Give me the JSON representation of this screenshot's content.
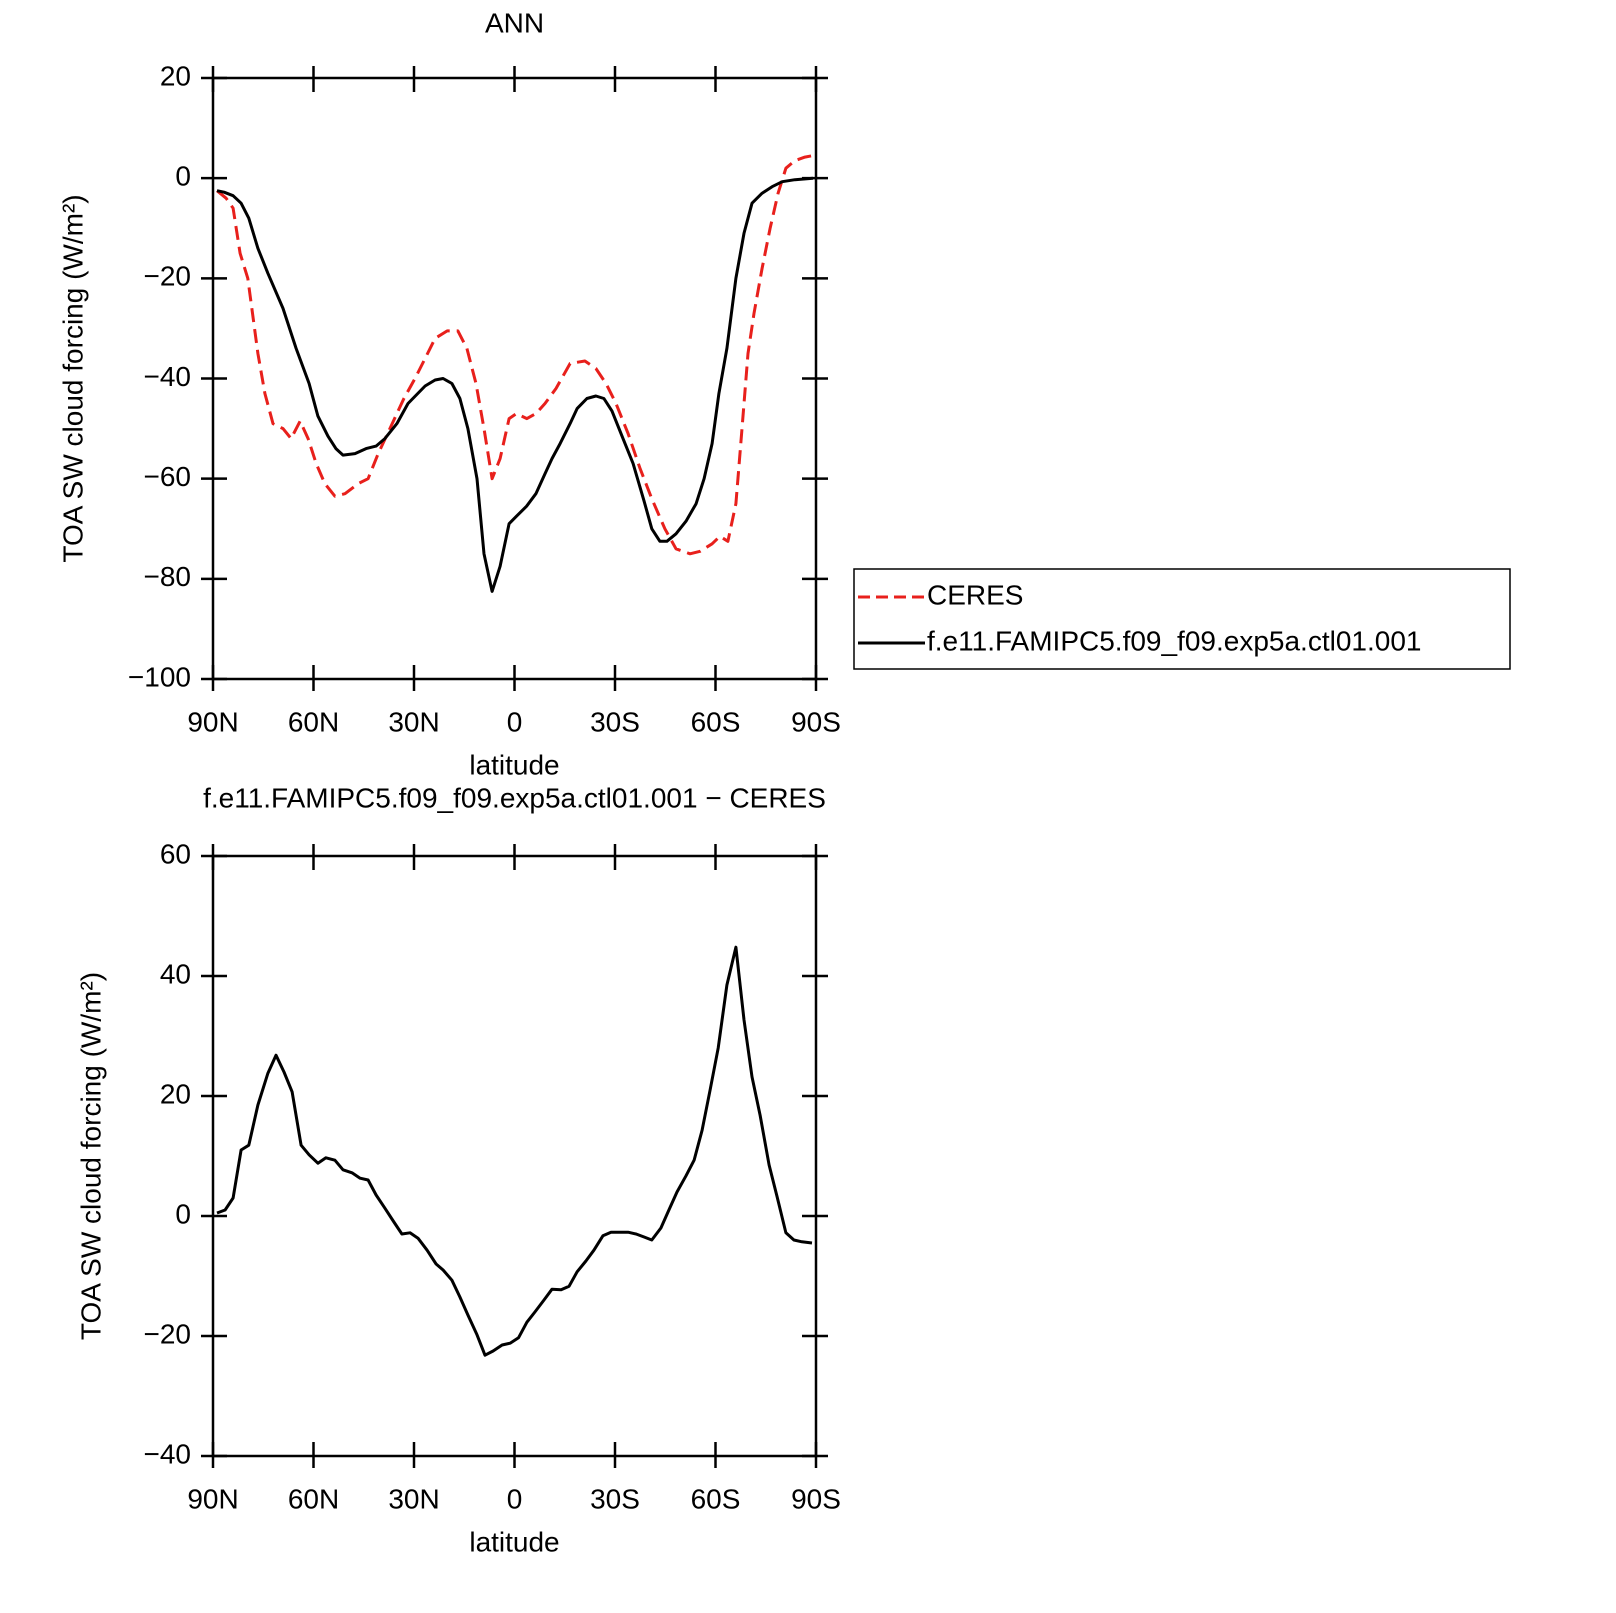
{
  "chart_data": [
    {
      "type": "line",
      "title": "ANN",
      "xlabel": "latitude",
      "ylabel": "TOA SW cloud forcing (W/m²)",
      "xlim": [
        90,
        -90
      ],
      "xticks": [
        {
          "value": 90,
          "label": "90N"
        },
        {
          "value": 60,
          "label": "60N"
        },
        {
          "value": 30,
          "label": "30N"
        },
        0,
        {
          "value": -30,
          "label": "30S"
        },
        {
          "value": -60,
          "label": "60S"
        },
        {
          "value": -90,
          "label": "90S"
        }
      ],
      "ylim": [
        -100,
        20
      ],
      "yticks": [
        {
          "value": -100,
          "label": "−100"
        },
        {
          "value": -80,
          "label": "−80"
        },
        {
          "value": -60,
          "label": "−60"
        },
        {
          "value": -40,
          "label": "−40"
        },
        {
          "value": -20,
          "label": "−20"
        },
        0,
        20
      ],
      "legend": "right",
      "series": [
        {
          "name": "CERES",
          "color": "#e8201c",
          "dashed": true,
          "x": [
            88.8,
            86.1,
            84,
            81.9,
            79.6,
            76.6,
            74.5,
            72.1,
            69.1,
            66.7,
            64,
            61.6,
            59.2,
            56.6,
            53.6,
            50.6,
            46.7,
            43.7,
            40.7,
            37.2,
            33,
            29.7,
            26.7,
            23.7,
            20.1,
            16.9,
            14.2,
            11.5,
            9.1,
            6.7,
            4.3,
            1.6,
            -0.6,
            -3.7,
            -6.4,
            -9.1,
            -12.4,
            -16.6,
            -21,
            -24.3,
            -27.3,
            -30.3,
            -33.9,
            -37.5,
            -41,
            -44.9,
            -48.2,
            -52.4,
            -55.4,
            -59,
            -61.3,
            -63.7,
            -66.1,
            -67.9,
            -69.7,
            -71.5,
            -73.9,
            -76.3,
            -78.7,
            -81,
            -83.7,
            -86.7,
            -89.1
          ],
          "values": [
            -2.5,
            -4,
            -6,
            -15,
            -20,
            -35,
            -43,
            -49,
            -50,
            -52,
            -48.5,
            -52,
            -57,
            -61,
            -63.5,
            -63,
            -61,
            -60,
            -55,
            -50,
            -44,
            -40,
            -36,
            -32,
            -30.5,
            -30.5,
            -34,
            -41,
            -50,
            -60,
            -56,
            -48,
            -47,
            -48,
            -47,
            -45,
            -42,
            -37,
            -36.5,
            -38,
            -41,
            -45,
            -51,
            -58,
            -64,
            -70,
            -74,
            -75,
            -74.5,
            -73,
            -71.5,
            -72.5,
            -65,
            -50,
            -35,
            -27,
            -18,
            -10,
            -3,
            2,
            3.5,
            4.2,
            4.5
          ]
        },
        {
          "name": "f.e11.FAMIPC5.f09_f09.exp5a.ctl01.001",
          "color": "#000000",
          "dashed": false,
          "x": [
            88.8,
            86.7,
            84,
            81.6,
            79.3,
            76.6,
            73.6,
            69.1,
            65.2,
            61.3,
            58.7,
            55.7,
            53.3,
            51.2,
            47.6,
            44.3,
            41.3,
            38.7,
            35.1,
            31.8,
            26.7,
            23.7,
            21.3,
            18.7,
            16.3,
            13.9,
            11.2,
            9.1,
            6.7,
            4.3,
            1.6,
            -0.6,
            -3.6,
            -6.4,
            -9.1,
            -11.2,
            -13.6,
            -16.6,
            -18.7,
            -21.6,
            -24.3,
            -26.7,
            -29.1,
            -32.1,
            -35.4,
            -38.7,
            -41,
            -43.4,
            -45.5,
            -48.2,
            -51.2,
            -54.2,
            -56.6,
            -59,
            -61,
            -63.4,
            -66.1,
            -68.5,
            -70.9,
            -73.9,
            -76.9,
            -79.9,
            -83.7,
            -89.1
          ],
          "values": [
            -2.5,
            -2.8,
            -3.5,
            -5,
            -8,
            -14,
            -19,
            -26,
            -34,
            -41,
            -47.5,
            -51.5,
            -54,
            -55.3,
            -55,
            -54,
            -53.5,
            -52,
            -49,
            -45,
            -41.5,
            -40.3,
            -40,
            -41,
            -44,
            -50,
            -60,
            -75,
            -82.5,
            -77.5,
            -69,
            -67.5,
            -65.5,
            -63,
            -59,
            -56,
            -53,
            -49,
            -46,
            -44,
            -43.5,
            -44,
            -46.5,
            -51.5,
            -57,
            -64.5,
            -70,
            -72.5,
            -72.5,
            -71,
            -68.5,
            -65,
            -60,
            -53,
            -43,
            -34,
            -20,
            -11,
            -5,
            -3,
            -1.7,
            -0.7,
            -0.3,
            0
          ]
        }
      ]
    },
    {
      "type": "line",
      "title": "f.e11.FAMIPC5.f09_f09.exp5a.ctl01.001 − CERES",
      "xlabel": "latitude",
      "ylabel": "TOA SW cloud forcing (W/m²)",
      "xlim": [
        90,
        -90
      ],
      "xticks": [
        {
          "value": 90,
          "label": "90N"
        },
        {
          "value": 60,
          "label": "60N"
        },
        {
          "value": 30,
          "label": "30N"
        },
        0,
        {
          "value": -30,
          "label": "30S"
        },
        {
          "value": -60,
          "label": "60S"
        },
        {
          "value": -90,
          "label": "90S"
        }
      ],
      "ylim": [
        -40,
        60
      ],
      "yticks": [
        {
          "value": -40,
          "label": "−40"
        },
        {
          "value": -20,
          "label": "−20"
        },
        0,
        20,
        40,
        60
      ],
      "series": [
        {
          "color": "#000000",
          "dashed": false,
          "x": [
            88.8,
            86.4,
            84,
            81.6,
            79.3,
            76.6,
            73.6,
            71.2,
            68.8,
            66.4,
            63.7,
            61.3,
            58.7,
            56.3,
            53.6,
            51.2,
            48.5,
            46.1,
            43.7,
            41.3,
            38.7,
            36,
            33.6,
            31.2,
            28.8,
            26.1,
            23.4,
            21.3,
            18.7,
            16.3,
            13.9,
            11.2,
            8.8,
            6.4,
            3.7,
            1.3,
            -1.2,
            -3.7,
            -6.1,
            -8.8,
            -11.2,
            -13.9,
            -16.3,
            -18.7,
            -21.3,
            -23.7,
            -26.4,
            -28.8,
            -31.2,
            -33.9,
            -36.3,
            -38.7,
            -41,
            -43.7,
            -46.1,
            -48.5,
            -51.2,
            -53.6,
            -56,
            -58.4,
            -60.8,
            -63.4,
            -66.1,
            -68.5,
            -70.9,
            -73.3,
            -76,
            -78.4,
            -81,
            -83.4,
            -85.8,
            -88.8
          ],
          "values": [
            0.5,
            1,
            3,
            11,
            11.8,
            18.5,
            23.8,
            26.8,
            24,
            20.7,
            11.8,
            10.2,
            8.8,
            9.7,
            9.3,
            7.7,
            7.2,
            6.3,
            6,
            3.5,
            1.3,
            -1,
            -3,
            -2.8,
            -3.7,
            -5.7,
            -8,
            -9,
            -10.7,
            -13.5,
            -16.5,
            -19.8,
            -23.2,
            -22.5,
            -21.5,
            -21.2,
            -20.3,
            -17.7,
            -16,
            -14,
            -12.2,
            -12.3,
            -11.7,
            -9.3,
            -7.5,
            -5.7,
            -3.3,
            -2.7,
            -2.7,
            -2.7,
            -3,
            -3.5,
            -4,
            -2,
            1,
            4,
            6.7,
            9.3,
            14.3,
            21,
            28,
            38.5,
            44.8,
            32.7,
            23.2,
            16.8,
            8.5,
            3.2,
            -2.8,
            -4,
            -4.3,
            -4.5
          ]
        }
      ]
    }
  ]
}
